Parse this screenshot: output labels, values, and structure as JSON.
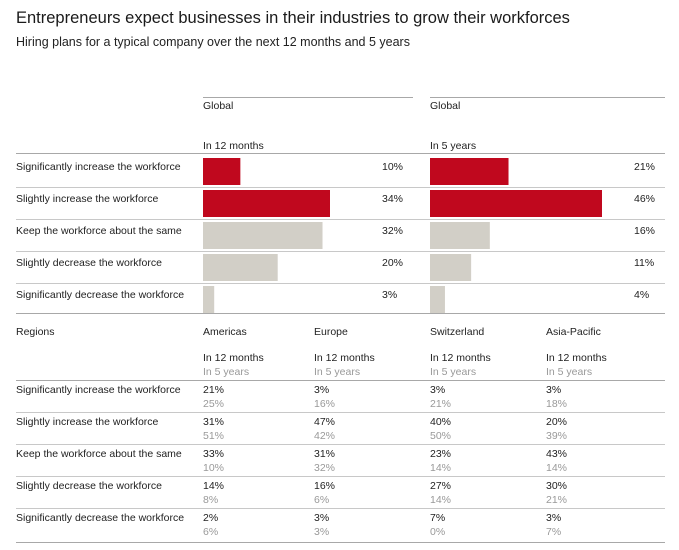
{
  "title": "Entrepreneurs expect businesses in their industries to grow their workforces",
  "subtitle": "Hiring plans for a typical company over the next 12 months and 5 years",
  "colors": {
    "increase": "#c0081e",
    "other": "#d2cfc7"
  },
  "chart_data": [
    {
      "type": "bar",
      "orientation": "horizontal",
      "region": "Global",
      "period": "In 12 months",
      "categories": [
        "Significantly increase the workforce",
        "Slightly increase the workforce",
        "Keep the workforce about the same",
        "Slightly decrease the workforce",
        "Significantly decrease the workforce"
      ],
      "values": [
        10,
        34,
        32,
        20,
        3
      ],
      "labels": [
        "10%",
        "34%",
        "32%",
        "20%",
        "3%"
      ]
    },
    {
      "type": "bar",
      "orientation": "horizontal",
      "region": "Global",
      "period": "In 5 years",
      "categories": [
        "Significantly increase the workforce",
        "Slightly increase the workforce",
        "Keep the workforce about the same",
        "Slightly decrease the workforce",
        "Significantly decrease the workforce"
      ],
      "values": [
        21,
        46,
        16,
        11,
        4
      ],
      "labels": [
        "21%",
        "46%",
        "16%",
        "11%",
        "4%"
      ]
    },
    {
      "type": "table",
      "header": "Regions",
      "period_primary": "In 12 months",
      "period_secondary": "In 5 years",
      "rows": [
        "Significantly increase the workforce",
        "Slightly increase the workforce",
        "Keep the workforce about the same",
        "Slightly decrease the workforce",
        "Significantly decrease the workforce"
      ],
      "columns": [
        {
          "region": "Americas",
          "in_12_months": [
            "21%",
            "31%",
            "33%",
            "14%",
            "2%"
          ],
          "in_5_years": [
            "25%",
            "51%",
            "10%",
            "8%",
            "6%"
          ]
        },
        {
          "region": "Europe",
          "in_12_months": [
            "3%",
            "47%",
            "31%",
            "16%",
            "3%"
          ],
          "in_5_years": [
            "16%",
            "42%",
            "32%",
            "6%",
            "3%"
          ]
        },
        {
          "region": "Switzerland",
          "in_12_months": [
            "3%",
            "40%",
            "23%",
            "27%",
            "7%"
          ],
          "in_5_years": [
            "21%",
            "50%",
            "14%",
            "14%",
            "0%"
          ]
        },
        {
          "region": "Asia-Pacific",
          "in_12_months": [
            "3%",
            "20%",
            "43%",
            "30%",
            "3%"
          ],
          "in_5_years": [
            "18%",
            "39%",
            "14%",
            "21%",
            "7%"
          ]
        }
      ]
    }
  ]
}
